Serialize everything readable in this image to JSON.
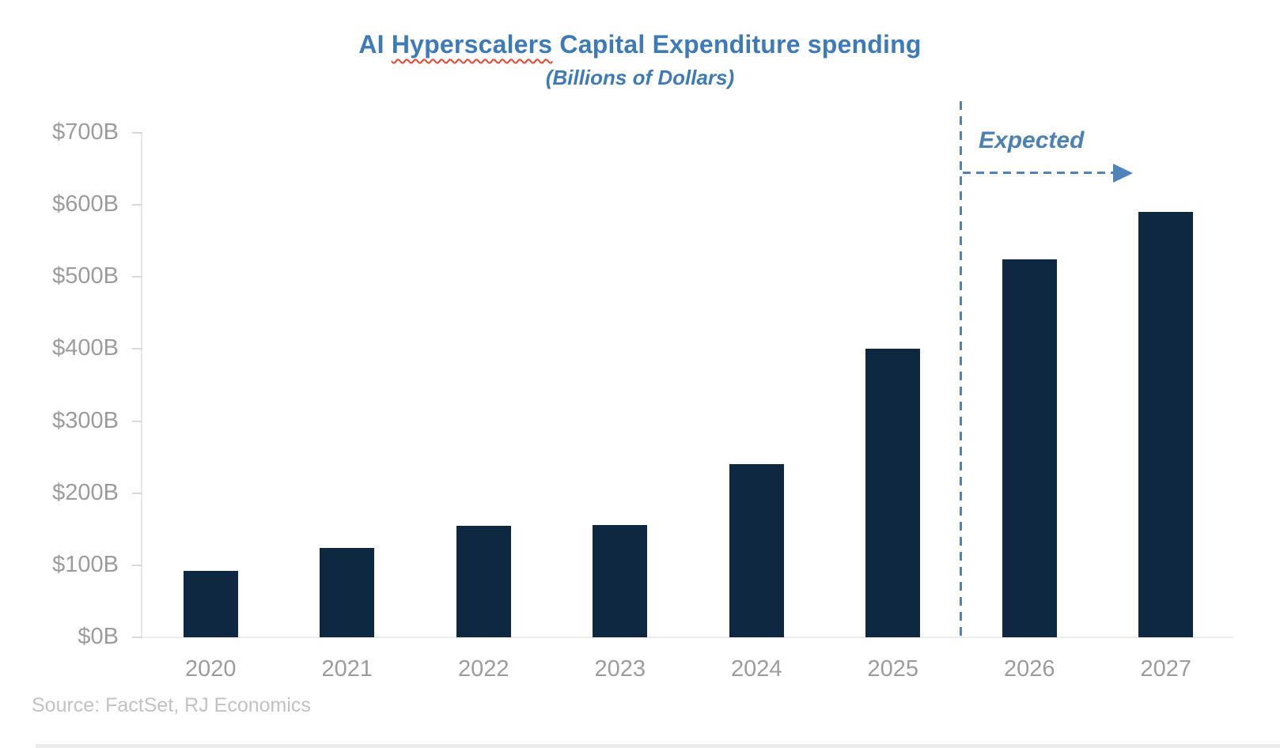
{
  "title": {
    "prefix": "AI ",
    "misspelled_word": "Hyperscalers",
    "suffix": " Capital Expenditure spending",
    "subtitle": "(Billions of Dollars)"
  },
  "annotation": {
    "expected_label": "Expected"
  },
  "source": "Source: FactSet, RJ Economics",
  "colors": {
    "bar": "#0E2841",
    "title_blue": "#3D7AB9",
    "annotation_blue": "#4B81B6",
    "axis_label_gray": "#9C9C9C",
    "source_gray": "#C2C2C2",
    "squiggle_red": "#E8442E"
  },
  "chart_data": {
    "type": "bar",
    "title": "AI Hyperscalers Capital Expenditure spending",
    "subtitle": "(Billions of Dollars)",
    "categories": [
      "2020",
      "2021",
      "2022",
      "2023",
      "2024",
      "2025",
      "2026",
      "2027"
    ],
    "values": [
      92,
      124,
      155,
      156,
      240,
      400,
      525,
      590
    ],
    "xlabel": "",
    "ylabel": "",
    "ylim": [
      0,
      700
    ],
    "y_tick_step": 100,
    "y_tick_labels": [
      "$0B",
      "$100B",
      "$200B",
      "$300B",
      "$400B",
      "$500B",
      "$600B",
      "$700B"
    ],
    "grid": false,
    "legend": false,
    "annotation": "Expected",
    "expected_categories": [
      "2026",
      "2027"
    ],
    "divider_between": [
      "2025",
      "2026"
    ]
  }
}
